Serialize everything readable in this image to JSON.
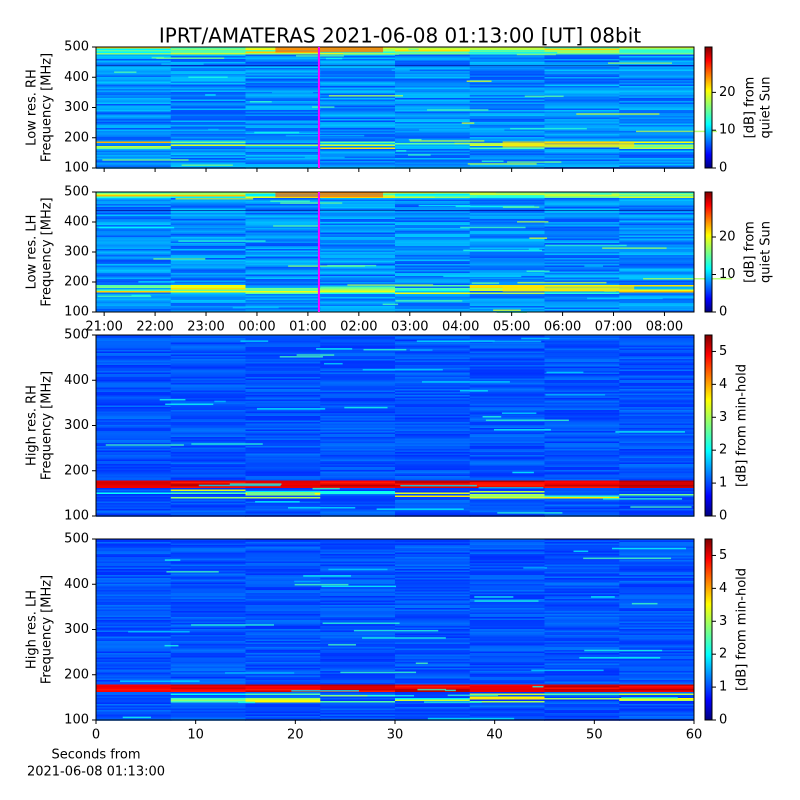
{
  "title": "IPRT/AMATERAS 2021-06-08 01:13:00 [UT]   08bit",
  "chart_data": [
    {
      "type": "heatmap",
      "ylabel": [
        "Low res. RH",
        "Frequency [MHz]"
      ],
      "ylim": [
        100,
        500
      ],
      "yticks": [
        100,
        200,
        300,
        400,
        500
      ],
      "xlim": [
        20.84,
        32.58
      ],
      "xticks": [
        21,
        22,
        23,
        24,
        25,
        26,
        27,
        28,
        29,
        30,
        31,
        32
      ],
      "show_xtick_labels": false,
      "marker_x": 25.2167,
      "marker_color": "#ff00ff",
      "colorbar_label": [
        "[dB] from",
        "quiet Sun"
      ],
      "clim": [
        0,
        32
      ],
      "cticks": [
        0,
        10,
        20
      ],
      "colormap": "jet"
    },
    {
      "type": "heatmap",
      "ylabel": [
        "Low res. LH",
        "Frequency [MHz]"
      ],
      "ylim": [
        100,
        500
      ],
      "yticks": [
        100,
        200,
        300,
        400,
        500
      ],
      "xlim": [
        20.84,
        32.58
      ],
      "xticks": [
        {
          "value": 21,
          "label": "21:00"
        },
        {
          "value": 22,
          "label": "22:00"
        },
        {
          "value": 23,
          "label": "23:00"
        },
        {
          "value": 24,
          "label": "00:00"
        },
        {
          "value": 25,
          "label": "01:00"
        },
        {
          "value": 26,
          "label": "02:00"
        },
        {
          "value": 27,
          "label": "03:00"
        },
        {
          "value": 28,
          "label": "04:00"
        },
        {
          "value": 29,
          "label": "05:00"
        },
        {
          "value": 30,
          "label": "06:00"
        },
        {
          "value": 31,
          "label": "07:00"
        },
        {
          "value": 32,
          "label": "08:00"
        }
      ],
      "show_xtick_labels": true,
      "marker_x": 25.2167,
      "marker_color": "#ff00ff",
      "colorbar_label": [
        "[dB] from",
        "quiet Sun"
      ],
      "clim": [
        0,
        32
      ],
      "cticks": [
        0,
        10,
        20
      ],
      "colormap": "jet"
    },
    {
      "type": "heatmap",
      "ylabel": [
        "High res. RH",
        "Frequency [MHz]"
      ],
      "ylim": [
        100,
        500
      ],
      "yticks": [
        100,
        200,
        300,
        400,
        500
      ],
      "colorbar_label": [
        "[dB] from min-hold"
      ],
      "clim": [
        0,
        5.5
      ],
      "cticks": [
        0,
        1,
        2,
        3,
        4,
        5
      ],
      "colormap": "jet"
    },
    {
      "type": "heatmap",
      "ylabel": [
        "High res. LH",
        "Frequency [MHz]"
      ],
      "ylim": [
        100,
        500
      ],
      "yticks": [
        100,
        200,
        300,
        400,
        500
      ],
      "xlim": [
        0,
        60
      ],
      "xticks": [
        0,
        10,
        20,
        30,
        40,
        50,
        60
      ],
      "show_xtick_labels": true,
      "xlabel": [
        "Seconds from",
        "2021-06-08 01:13:00"
      ],
      "colorbar_label": [
        "[dB] from min-hold"
      ],
      "clim": [
        0,
        5.5
      ],
      "cticks": [
        0,
        1,
        2,
        3,
        4,
        5
      ],
      "colormap": "jet"
    }
  ]
}
